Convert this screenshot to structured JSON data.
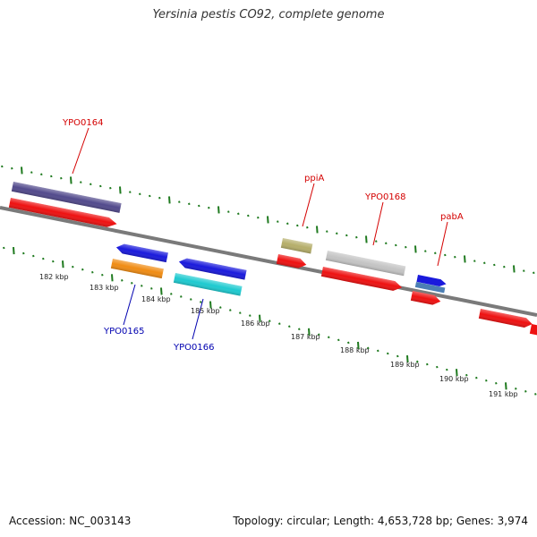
{
  "header": {
    "title": "Yersinia pestis CO92, complete genome"
  },
  "footer": {
    "accession": "Accession: NC_003143",
    "summary": "Topology: circular; Length: 4,653,728 bp; Genes: 3,974"
  },
  "colors": {
    "backbone": "#7a7a7a",
    "tick": "#1f7a1f",
    "label_top": "#d40000",
    "label_bottom": "#0000b0",
    "gene_red": "#ee1111",
    "gene_purple": "#524a8c",
    "gene_blue": "#1a1adc",
    "gene_orange": "#f08c14",
    "gene_cyan": "#1ecad0",
    "gene_olive": "#b5ae6a",
    "gene_silver": "#c4c4c4",
    "gene_steel": "#4c7fb4"
  },
  "scale": {
    "unit": "kbp",
    "labels": [
      "182 kbp",
      "183 kbp",
      "184 kbp",
      "185 kbp",
      "186 kbp",
      "187 kbp",
      "188 kbp",
      "189 kbp",
      "190 kbp",
      "191 kbp"
    ]
  },
  "gene_labels": [
    {
      "id": "ypo0164",
      "text": "YPO0164",
      "side": "top"
    },
    {
      "id": "ppia",
      "text": "ppiA",
      "side": "top"
    },
    {
      "id": "ypo0168",
      "text": "YPO0168",
      "side": "top"
    },
    {
      "id": "paba",
      "text": "pabA",
      "side": "top"
    },
    {
      "id": "ypo0165",
      "text": "YPO0165",
      "side": "bottom"
    },
    {
      "id": "ypo0166",
      "text": "YPO0166",
      "side": "bottom"
    }
  ]
}
